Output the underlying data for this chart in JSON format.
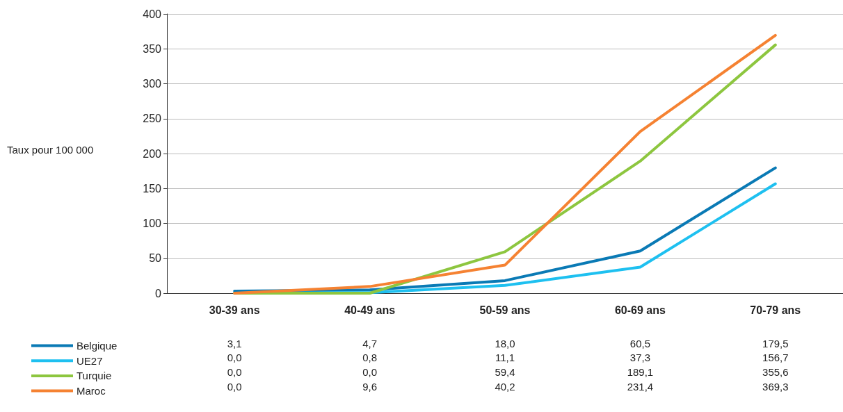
{
  "chart_data": {
    "type": "line",
    "ylabel": "Taux pour 100 000",
    "categories": [
      "30-39 ans",
      "40-49 ans",
      "50-59 ans",
      "60-69 ans",
      "70-79 ans"
    ],
    "series": [
      {
        "name": "Belgique",
        "color": "#0a7ab5",
        "values": [
          3.1,
          4.7,
          18.0,
          60.5,
          179.5
        ],
        "value_labels": [
          "3,1",
          "4,7",
          "18,0",
          "60,5",
          "179,5"
        ]
      },
      {
        "name": "UE27",
        "color": "#1ec0f0",
        "values": [
          0.0,
          0.8,
          11.1,
          37.3,
          156.7
        ],
        "value_labels": [
          "0,0",
          "0,8",
          "11,1",
          "37,3",
          "156,7"
        ]
      },
      {
        "name": "Turquie",
        "color": "#8dc63f",
        "values": [
          0.0,
          0.0,
          59.4,
          189.1,
          355.6
        ],
        "value_labels": [
          "0,0",
          "0,0",
          "59,4",
          "189,1",
          "355,6"
        ]
      },
      {
        "name": "Maroc",
        "color": "#f58232",
        "values": [
          0.0,
          9.6,
          40.2,
          231.4,
          369.3
        ],
        "value_labels": [
          "0,0",
          "9,6",
          "40,2",
          "231,4",
          "369,3"
        ]
      }
    ],
    "ylim": [
      0,
      400
    ],
    "yticks": [
      0,
      50,
      100,
      150,
      200,
      250,
      300,
      350,
      400
    ],
    "grid": "y",
    "legend": "bottom",
    "marker": "none",
    "line_style": "solid"
  }
}
